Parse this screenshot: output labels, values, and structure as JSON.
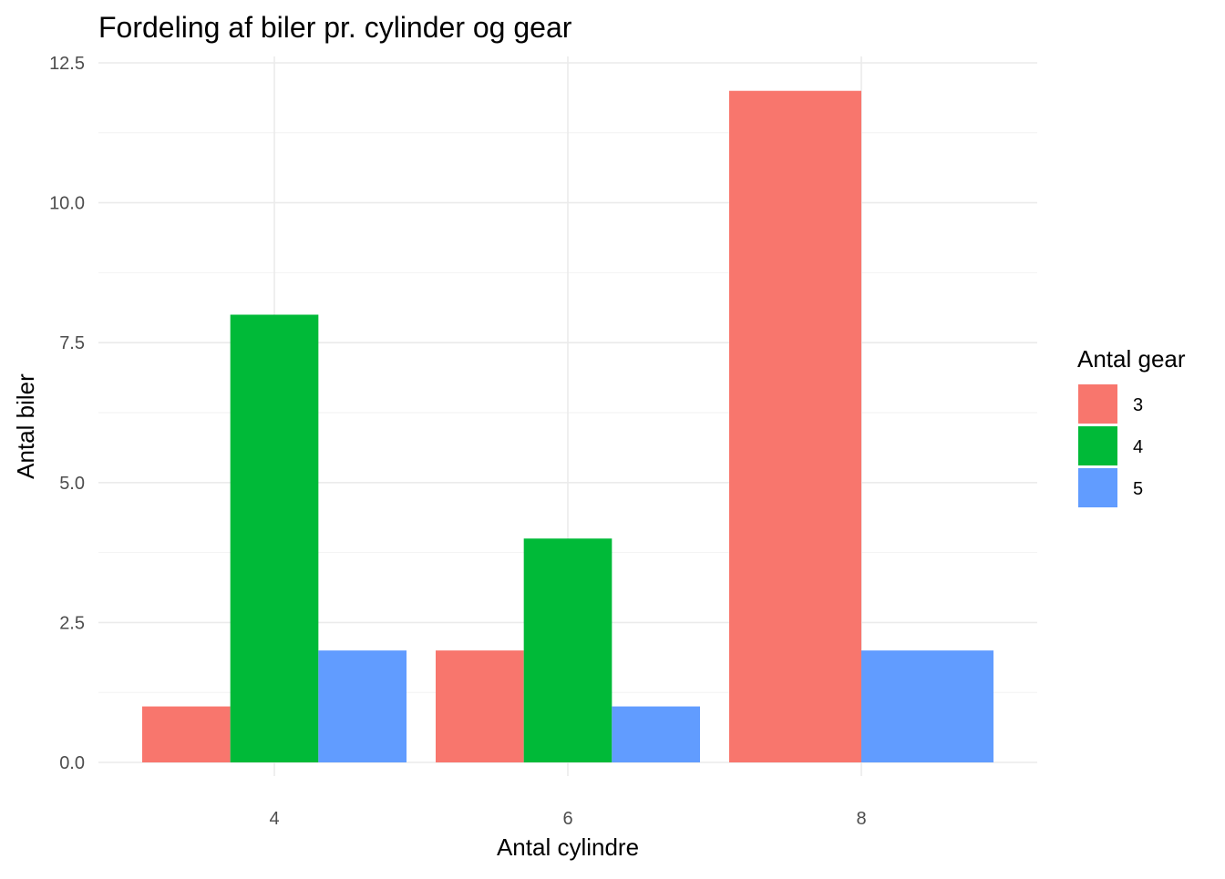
{
  "chart_data": {
    "type": "bar",
    "title": "Fordeling af biler pr. cylinder og gear",
    "xlabel": "Antal cylindre",
    "ylabel": "Antal biler",
    "categories": [
      "4",
      "6",
      "8"
    ],
    "series": [
      {
        "name": "3",
        "values": [
          1,
          2,
          12
        ],
        "color": "#F8766D"
      },
      {
        "name": "4",
        "values": [
          8,
          4,
          null
        ],
        "color": "#00BA38"
      },
      {
        "name": "5",
        "values": [
          2,
          1,
          2
        ],
        "color": "#619CFF"
      }
    ],
    "ylim": [
      0,
      12.5
    ],
    "yticks": [
      "0.0",
      "2.5",
      "5.0",
      "7.5",
      "10.0",
      "12.5"
    ],
    "grid": true,
    "legend": {
      "title": "Antal gear",
      "position": "right"
    }
  }
}
